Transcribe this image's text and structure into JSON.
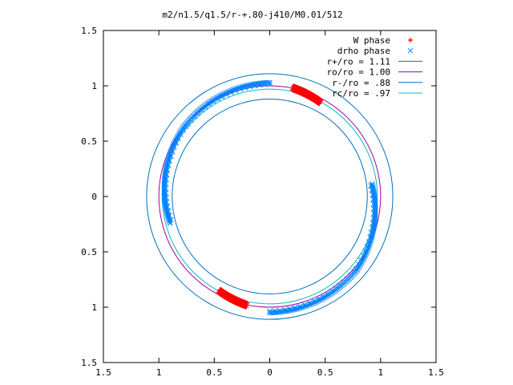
{
  "chart_data": {
    "type": "scatter",
    "title": "m2/n1.5/q1.5/r-+.80-j410/M0.01/512",
    "xlabel": "",
    "ylabel": "",
    "xlim": [
      -1.5,
      1.5
    ],
    "ylim": [
      -1.5,
      1.5
    ],
    "x_ticks": [
      -1.5,
      -1,
      -0.5,
      0,
      0.5,
      1,
      1.5
    ],
    "y_ticks": [
      -1.5,
      -1,
      -0.5,
      0,
      0.5,
      1,
      1.5
    ],
    "x_tick_labels": [
      "1.5",
      "1",
      "0.5",
      "0",
      "0.5",
      "1",
      "1.5"
    ],
    "y_tick_labels": [
      "1.5",
      "1",
      "0.5",
      "0",
      "0.5",
      "1",
      "1.5"
    ],
    "grid": false,
    "legend_position": "top-right",
    "series": [
      {
        "name": "W phase",
        "kind": "points",
        "marker": "+",
        "color": "#ff0000",
        "clusters": [
          {
            "center_angle_deg": 70,
            "half_span_deg": 8,
            "r_inner": 0.95,
            "r_outer": 1.02
          },
          {
            "center_angle_deg": 250,
            "half_span_deg": 8,
            "r_inner": 0.95,
            "r_outer": 1.02
          }
        ]
      },
      {
        "name": "drho phase",
        "kind": "points",
        "marker": "x",
        "color": "#0080ff",
        "clusters": [
          {
            "start_angle_deg": 90,
            "end_angle_deg": 140,
            "r_start": 1.03,
            "r_end": 1.0
          },
          {
            "start_angle_deg": 140,
            "end_angle_deg": 195,
            "r_start": 1.0,
            "r_end": 0.93
          },
          {
            "start_angle_deg": 270,
            "end_angle_deg": 320,
            "r_start": 1.05,
            "r_end": 1.03
          },
          {
            "start_angle_deg": 320,
            "end_angle_deg": 7,
            "r_start": 1.03,
            "r_end": 0.93
          }
        ]
      },
      {
        "name": "r+/ro = 1.11",
        "kind": "circle",
        "radius": 1.11,
        "color": "#0070c0"
      },
      {
        "name": "ro/ro = 1.00",
        "kind": "circle",
        "radius": 1.0,
        "color": "#a000a0"
      },
      {
        "name": "r-/ro = .88",
        "kind": "circle",
        "radius": 0.88,
        "color": "#0070c0"
      },
      {
        "name": "rc/ro = .97",
        "kind": "circle",
        "radius": 0.97,
        "color": "#00c0c0"
      }
    ]
  }
}
